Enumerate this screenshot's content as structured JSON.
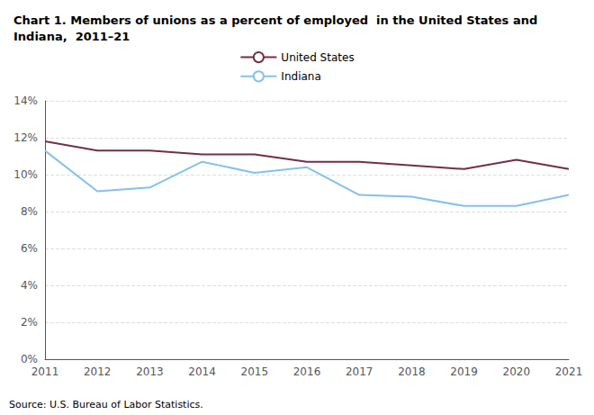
{
  "chart_data": {
    "type": "line",
    "title": "Chart 1. Members of unions as a percent of employed  in the United States and\nIndiana,  2011–21",
    "x": [
      2011,
      2012,
      2013,
      2014,
      2015,
      2016,
      2017,
      2018,
      2019,
      2020,
      2021
    ],
    "series": [
      {
        "name": "United States",
        "color": "#722F4A",
        "values": [
          11.8,
          11.3,
          11.3,
          11.1,
          11.1,
          10.7,
          10.7,
          10.5,
          10.3,
          10.8,
          10.3
        ]
      },
      {
        "name": "Indiana",
        "color": "#85C1E9",
        "values": [
          11.3,
          9.1,
          9.3,
          10.7,
          10.1,
          10.4,
          8.9,
          8.8,
          8.3,
          8.3,
          8.9
        ]
      }
    ],
    "xlim": [
      2011,
      2021
    ],
    "xticks": [
      2011,
      2012,
      2013,
      2014,
      2015,
      2016,
      2017,
      2018,
      2019,
      2020,
      2021
    ],
    "ylim": [
      0,
      14
    ],
    "yticks": [
      {
        "value": 0,
        "label": "0%"
      },
      {
        "value": 2,
        "label": "2%"
      },
      {
        "value": 4,
        "label": "4%"
      },
      {
        "value": 6,
        "label": "6%"
      },
      {
        "value": 8,
        "label": "8%"
      },
      {
        "value": 10,
        "label": "10%"
      },
      {
        "value": 12,
        "label": "12%"
      },
      {
        "value": 14,
        "label": "14%"
      }
    ],
    "grid": true,
    "legend": "top",
    "annotations": [
      "Source: U.S. Bureau of Labor Statistics."
    ]
  }
}
